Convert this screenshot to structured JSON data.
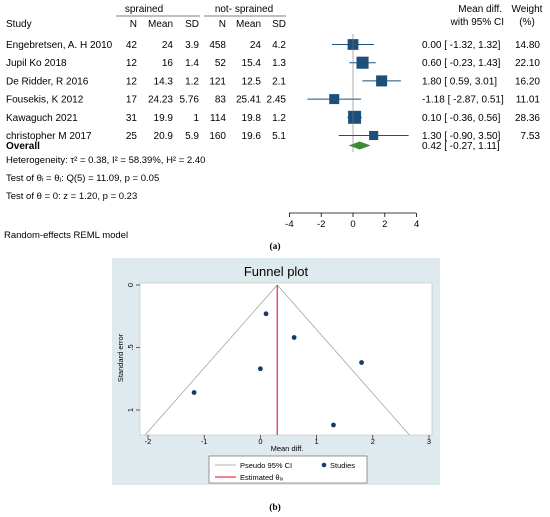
{
  "forest": {
    "group_headers": {
      "treat": "sprained",
      "control": "not- sprained"
    },
    "columns": {
      "study": "Study",
      "n1": "N",
      "mean1": "Mean",
      "sd1": "SD",
      "n2": "N",
      "mean2": "Mean",
      "sd2": "SD",
      "effect": "Mean diff.",
      "effect_sub": "with 95% CI",
      "weight": "Weight",
      "weight_sub": "(%)"
    },
    "rows": [
      {
        "study": "Engebretsen, A. H 2010",
        "n1": "42",
        "mean1": "24",
        "sd1": "3.9",
        "n2": "458",
        "mean2": "24",
        "sd2": "4.2",
        "ci_text": "0.00 [ -1.32,  1.32]",
        "weight": "14.80",
        "est": 0.0,
        "lo": -1.32,
        "hi": 1.32,
        "w": 14.8
      },
      {
        "study": "Jupil Ko 2018",
        "n1": "12",
        "mean1": "16",
        "sd1": "1.4",
        "n2": "52",
        "mean2": "15.4",
        "sd2": "1.3",
        "ci_text": "0.60 [ -0.23,  1.43]",
        "weight": "22.10",
        "est": 0.6,
        "lo": -0.23,
        "hi": 1.43,
        "w": 22.1
      },
      {
        "study": "De Ridder, R 2016",
        "n1": "12",
        "mean1": "14.3",
        "sd1": "1.2",
        "n2": "121",
        "mean2": "12.5",
        "sd2": "2.1",
        "ci_text": "1.80 [  0.59,  3.01]",
        "weight": "16.20",
        "est": 1.8,
        "lo": 0.59,
        "hi": 3.01,
        "w": 16.2
      },
      {
        "study": "Fousekis, K 2012",
        "n1": "17",
        "mean1": "24.23",
        "sd1": "5.76",
        "n2": "83",
        "mean2": "25.41",
        "sd2": "2.45",
        "ci_text": "-1.18 [ -2.87,  0.51]",
        "weight": "11.01",
        "est": -1.18,
        "lo": -2.87,
        "hi": 0.51,
        "w": 11.01
      },
      {
        "study": "Kawaguch 2021",
        "n1": "31",
        "mean1": "19.9",
        "sd1": "1",
        "n2": "114",
        "mean2": "19.8",
        "sd2": "1.2",
        "ci_text": "0.10 [ -0.36,  0.56]",
        "weight": "28.36",
        "est": 0.1,
        "lo": -0.36,
        "hi": 0.56,
        "w": 28.36
      },
      {
        "study": "christopher M 2017",
        "n1": "25",
        "mean1": "20.9",
        "sd1": "5.9",
        "n2": "160",
        "mean2": "19.6",
        "sd2": "5.1",
        "ci_text": "1.30 [ -0.90,  3.50]",
        "weight": "7.53",
        "est": 1.3,
        "lo": -0.9,
        "hi": 3.5,
        "w": 7.53
      }
    ],
    "overall": {
      "label": "Overall",
      "ci_text": "0.42 [ -0.27,  1.11]",
      "est": 0.42,
      "lo": -0.27,
      "hi": 1.11
    },
    "heterogeneity": "Heterogeneity: τ² = 0.38, I² = 58.39%, H² = 2.40",
    "test_theta_i": "Test of θᵢ = θⱼ: Q(5) = 11.09, p = 0.05",
    "test_theta_0": "Test of θ = 0: z = 1.20, p = 0.23",
    "axis_ticks": [
      -4,
      -2,
      0,
      2,
      4
    ],
    "axis_tick_labels": [
      "-4",
      "-2",
      "0",
      "2",
      "4"
    ],
    "model_note": "Random-effects REML model"
  },
  "caption_a": "(a)",
  "caption_b": "(b)",
  "funnel": {
    "title": "Funnel plot",
    "xlabel": "Mean diff.",
    "ylabel": "Standard error",
    "xticks": [
      -2,
      -1,
      0,
      1,
      2,
      3
    ],
    "xtick_labels": [
      "-2",
      "-1",
      "0",
      "1",
      "2",
      "3"
    ],
    "yticks": [
      0,
      0.5,
      1
    ],
    "ytick_labels": [
      "0",
      ".5",
      "1"
    ],
    "legend_pseudo": "Pseudo 95% CI",
    "legend_studies": "Studies",
    "legend_estimated": "Estimated θᵢᵥ",
    "colors": {
      "background": "#dfeaee",
      "studies": "#173a6b",
      "estimate": "#e8384f",
      "ci": "#9a9a9a",
      "title": "#1e2a4a"
    }
  },
  "chart_data": [
    {
      "type": "forest",
      "series": [
        {
          "name": "Mean diff.",
          "values": [
            0.0,
            0.6,
            1.8,
            -1.18,
            0.1,
            1.3
          ]
        }
      ],
      "categories": [
        "Engebretsen, A. H 2010",
        "Jupil Ko 2018",
        "De Ridder, R 2016",
        "Fousekis, K 2012",
        "Kawaguch 2021",
        "christopher M 2017"
      ],
      "ci_low": [
        -1.32,
        -0.23,
        0.59,
        -2.87,
        -0.36,
        -0.9
      ],
      "ci_high": [
        1.32,
        1.43,
        3.01,
        0.51,
        0.56,
        3.5
      ],
      "weights": [
        14.8,
        22.1,
        16.2,
        11.01,
        28.36,
        7.53
      ],
      "overall": {
        "est": 0.42,
        "lo": -0.27,
        "hi": 1.11
      },
      "xlim": [
        -4,
        4
      ]
    },
    {
      "type": "scatter",
      "title": "Funnel plot",
      "xlabel": "Mean diff.",
      "ylabel": "Standard error",
      "x": [
        0.0,
        0.6,
        1.8,
        -1.18,
        0.1,
        1.3
      ],
      "y": [
        0.67,
        0.42,
        0.62,
        0.86,
        0.23,
        1.12
      ],
      "xlim": [
        -2,
        3
      ],
      "ylim": [
        1.2,
        0
      ],
      "estimate": 0.3,
      "legend": "bottom"
    }
  ]
}
